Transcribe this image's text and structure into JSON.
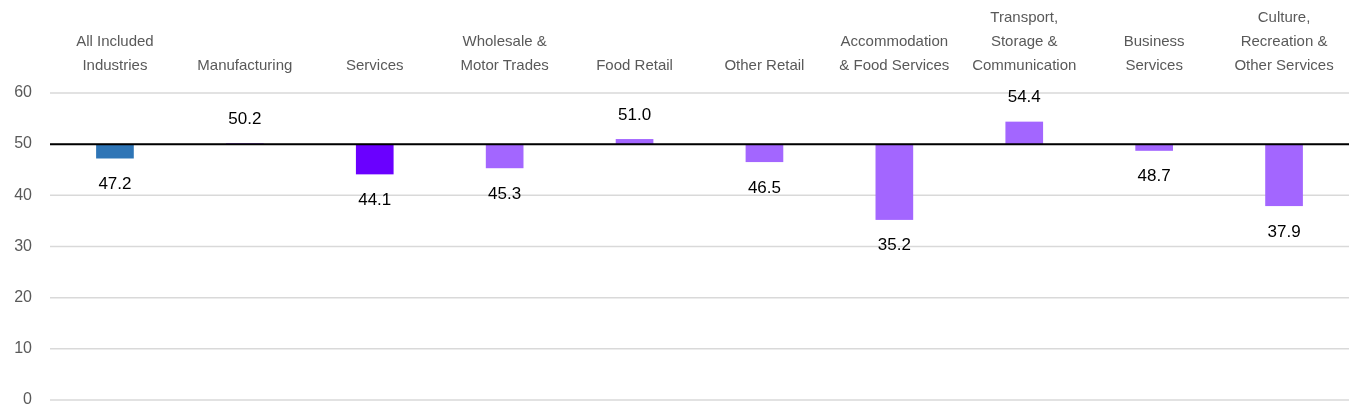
{
  "chart_data": {
    "type": "bar",
    "categories": [
      "All Included Industries",
      "Manufacturing",
      "Services",
      "Wholesale & Motor Trades",
      "Food Retail",
      "Other Retail",
      "Accommodation & Food Services",
      "Transport, Storage & Communication",
      "Business Services",
      "Culture, Recreation & Other Services"
    ],
    "base": [
      50,
      50,
      50,
      50,
      50,
      50,
      50,
      50,
      50,
      50
    ],
    "values": [
      -2.8,
      0.2,
      -5.9,
      -4.7,
      1.0,
      -3.5,
      -14.8,
      4.4,
      -1.3,
      -12.1
    ],
    "value_labels": [
      "47.2",
      "50.2",
      "44.1",
      "45.3",
      "51.0",
      "46.5",
      "35.2",
      "54.4",
      "48.7",
      "37.9"
    ],
    "colors": [
      "#2e75b6",
      "#a366ff",
      "#6a00ff",
      "#a366ff",
      "#a366ff",
      "#a366ff",
      "#a366ff",
      "#a366ff",
      "#a366ff",
      "#a366ff"
    ],
    "ylim": [
      0,
      60
    ],
    "yticks": [
      0,
      10,
      20,
      30,
      40,
      50,
      60
    ],
    "grid": "y",
    "ref_lines": [
      {
        "axis": "y",
        "value": 50,
        "color": "#000000"
      }
    ]
  }
}
